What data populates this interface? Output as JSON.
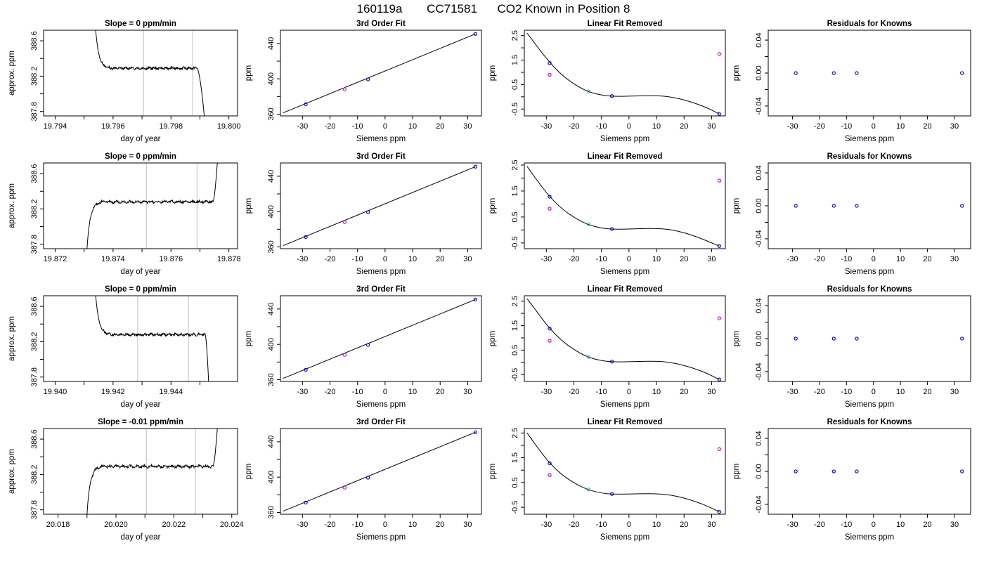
{
  "header": {
    "run": "160119a",
    "tank": "CC71581",
    "description": "CO2 Known in Position  8"
  },
  "colors": {
    "known": "#0000cd",
    "reference": "#cd00cd",
    "assigned": "#00bfff",
    "curve": "#000000",
    "window": "#bebebe"
  },
  "chart_data": [
    {
      "row": 1,
      "panel": "trace",
      "type": "line",
      "title": "Slope =  0  ppm/min",
      "xlabel": "day of year",
      "ylabel": "approx. ppm",
      "xlim": [
        19.7936,
        19.8003
      ],
      "ylim": [
        387.75,
        388.72
      ],
      "xticks": [
        "19.794",
        "19.796",
        "19.798",
        "19.800"
      ],
      "yticks": [
        "387.8",
        "388.2",
        "388.6"
      ],
      "window": [
        19.79705,
        19.79875
      ],
      "shape": {
        "start": 19.7954,
        "plateau_start": 19.7959,
        "plateau_end": 19.7989,
        "end": 19.79915,
        "edge_dir": "down",
        "level": 388.29,
        "y_start": 388.72,
        "y_end": 387.75,
        "noise": 0.012
      }
    },
    {
      "row": 1,
      "panel": "fit",
      "type": "scatter",
      "title": "3rd Order Fit",
      "xlabel": "Siemens ppm",
      "ylabel": "ppm",
      "xlim": [
        -38,
        35
      ],
      "ylim": [
        358,
        455
      ],
      "xticks": [
        "-30",
        "-20",
        "-10",
        "0",
        "10",
        "20",
        "30"
      ],
      "yticks": [
        "360",
        "400",
        "440"
      ],
      "line": [
        [
          -37,
          361.5
        ],
        [
          32.8,
          450.8
        ]
      ],
      "points": [
        {
          "x": -28.8,
          "y": 371.2,
          "kind": "known"
        },
        {
          "x": -14.7,
          "y": 388.1,
          "kind": "reference"
        },
        {
          "x": -6.2,
          "y": 399.3,
          "kind": "known"
        },
        {
          "x": 32.8,
          "y": 450.8,
          "kind": "known"
        }
      ]
    },
    {
      "row": 1,
      "panel": "linear_removed",
      "type": "scatter",
      "title": "Linear Fit Removed",
      "xlabel": "Siemens ppm",
      "ylabel": "ppm",
      "xlim": [
        -38,
        35
      ],
      "ylim": [
        -0.78,
        2.72
      ],
      "xticks": [
        "-30",
        "-20",
        "-10",
        "0",
        "10",
        "20",
        "30"
      ],
      "yticks": [
        "-0.5",
        "0.5",
        "1.5",
        "2.5"
      ],
      "curve_points": [
        [
          -37,
          2.6
        ],
        [
          -33,
          2.0
        ],
        [
          -28.8,
          1.4
        ],
        [
          -24,
          0.85
        ],
        [
          -19,
          0.45
        ],
        [
          -14.7,
          0.2
        ],
        [
          -10,
          0.07
        ],
        [
          -6.2,
          0.02
        ],
        [
          -2,
          0.02
        ],
        [
          4,
          0.04
        ],
        [
          10,
          0.05
        ],
        [
          15,
          0.0
        ],
        [
          20,
          -0.12
        ],
        [
          25,
          -0.3
        ],
        [
          29,
          -0.48
        ],
        [
          32.8,
          -0.7
        ]
      ],
      "points": [
        {
          "x": -28.8,
          "y": 1.38,
          "kind": "known"
        },
        {
          "x": -28.8,
          "y": 0.9,
          "kind": "reference"
        },
        {
          "x": -14.7,
          "y": 0.22,
          "kind": "assigned"
        },
        {
          "x": -6.2,
          "y": 0.03,
          "kind": "known"
        },
        {
          "x": 32.8,
          "y": 1.75,
          "kind": "reference"
        },
        {
          "x": 32.8,
          "y": -0.7,
          "kind": "known"
        }
      ]
    },
    {
      "row": 1,
      "panel": "residuals",
      "type": "scatter",
      "title": "Residuals for Knowns",
      "xlabel": "Siemens ppm",
      "ylabel": "ppm",
      "xlim": [
        -39,
        36
      ],
      "ylim": [
        -0.052,
        0.052
      ],
      "xticks": [
        "-30",
        "-20",
        "-10",
        "0",
        "10",
        "20",
        "30"
      ],
      "yticks": [
        "-0.04",
        "0.00",
        "0.04"
      ],
      "points": [
        {
          "x": -28.8,
          "y": 0.0,
          "kind": "known"
        },
        {
          "x": -14.7,
          "y": 0.0,
          "kind": "known"
        },
        {
          "x": -6.2,
          "y": 0.0,
          "kind": "known"
        },
        {
          "x": 32.8,
          "y": 0.0,
          "kind": "known"
        }
      ]
    },
    {
      "row": 2,
      "panel": "trace",
      "type": "line",
      "title": "Slope =  0  ppm/min",
      "xlabel": "day of year",
      "ylabel": "approx. ppm",
      "xlim": [
        19.8716,
        19.8783
      ],
      "ylim": [
        387.75,
        388.72
      ],
      "xticks": [
        "19.872",
        "19.874",
        "19.876",
        "19.878"
      ],
      "yticks": [
        "387.8",
        "388.2",
        "388.6"
      ],
      "window": [
        19.87515,
        19.8769
      ],
      "shape": {
        "start": 19.8731,
        "plateau_start": 19.8736,
        "plateau_end": 19.87745,
        "end": 19.8776,
        "edge_dir": "up",
        "level": 388.28,
        "y_start": 387.75,
        "y_end": 388.72,
        "noise": 0.012
      }
    },
    {
      "row": 2,
      "panel": "fit",
      "type": "scatter",
      "title": "3rd Order Fit",
      "xlabel": "Siemens ppm",
      "ylabel": "ppm",
      "xlim": [
        -38,
        35
      ],
      "ylim": [
        358,
        455
      ],
      "xticks": [
        "-30",
        "-20",
        "-10",
        "0",
        "10",
        "20",
        "30"
      ],
      "yticks": [
        "360",
        "400",
        "440"
      ],
      "line": [
        [
          -37,
          361.5
        ],
        [
          32.8,
          450.8
        ]
      ],
      "points": [
        {
          "x": -28.8,
          "y": 371.2,
          "kind": "known"
        },
        {
          "x": -14.7,
          "y": 388.1,
          "kind": "reference"
        },
        {
          "x": -6.2,
          "y": 399.3,
          "kind": "known"
        },
        {
          "x": 32.8,
          "y": 450.8,
          "kind": "known"
        }
      ]
    },
    {
      "row": 2,
      "panel": "linear_removed",
      "type": "scatter",
      "title": "Linear Fit Removed",
      "xlabel": "Siemens ppm",
      "ylabel": "ppm",
      "xlim": [
        -38,
        35
      ],
      "ylim": [
        -0.72,
        2.58
      ],
      "xticks": [
        "-30",
        "-20",
        "-10",
        "0",
        "10",
        "20",
        "30"
      ],
      "yticks": [
        "-0.5",
        "0.5",
        "1.5",
        "2.5"
      ],
      "curve_points": [
        [
          -37,
          2.45
        ],
        [
          -33,
          1.85
        ],
        [
          -28.8,
          1.28
        ],
        [
          -24,
          0.78
        ],
        [
          -19,
          0.42
        ],
        [
          -14.7,
          0.2
        ],
        [
          -10,
          0.07
        ],
        [
          -6.2,
          0.03
        ],
        [
          -2,
          0.03
        ],
        [
          4,
          0.05
        ],
        [
          10,
          0.06
        ],
        [
          15,
          0.02
        ],
        [
          20,
          -0.1
        ],
        [
          25,
          -0.28
        ],
        [
          29,
          -0.45
        ],
        [
          32.8,
          -0.62
        ]
      ],
      "points": [
        {
          "x": -28.8,
          "y": 1.28,
          "kind": "known"
        },
        {
          "x": -28.8,
          "y": 0.82,
          "kind": "reference"
        },
        {
          "x": -14.7,
          "y": 0.22,
          "kind": "assigned"
        },
        {
          "x": -6.2,
          "y": 0.04,
          "kind": "known"
        },
        {
          "x": 32.8,
          "y": 1.9,
          "kind": "reference"
        },
        {
          "x": 32.8,
          "y": -0.62,
          "kind": "known"
        }
      ]
    },
    {
      "row": 2,
      "panel": "residuals",
      "type": "scatter",
      "title": "Residuals for Knowns",
      "xlabel": "Siemens ppm",
      "ylabel": "ppm",
      "xlim": [
        -39,
        36
      ],
      "ylim": [
        -0.052,
        0.052
      ],
      "xticks": [
        "-30",
        "-20",
        "-10",
        "0",
        "10",
        "20",
        "30"
      ],
      "yticks": [
        "-0.04",
        "0.00",
        "0.04"
      ],
      "points": [
        {
          "x": -28.8,
          "y": 0.0,
          "kind": "known"
        },
        {
          "x": -14.7,
          "y": 0.0,
          "kind": "known"
        },
        {
          "x": -6.2,
          "y": 0.0,
          "kind": "known"
        },
        {
          "x": 32.8,
          "y": 0.0,
          "kind": "known"
        }
      ]
    },
    {
      "row": 3,
      "panel": "trace",
      "type": "line",
      "title": "Slope =  0  ppm/min",
      "xlabel": "day of year",
      "ylabel": "approx. ppm",
      "xlim": [
        19.9396,
        19.9463
      ],
      "ylim": [
        387.75,
        388.72
      ],
      "xticks": [
        "19.940",
        "19.942",
        "19.944"
      ],
      "yticks": [
        "387.8",
        "388.2",
        "388.6"
      ],
      "window": [
        19.94285,
        19.9446
      ],
      "shape": {
        "start": 19.9414,
        "plateau_start": 19.9419,
        "plateau_end": 19.94518,
        "end": 19.9453,
        "edge_dir": "down",
        "level": 388.28,
        "y_start": 388.72,
        "y_end": 387.75,
        "noise": 0.012
      }
    },
    {
      "row": 3,
      "panel": "fit",
      "type": "scatter",
      "title": "3rd Order Fit",
      "xlabel": "Siemens ppm",
      "ylabel": "ppm",
      "xlim": [
        -38,
        35
      ],
      "ylim": [
        358,
        455
      ],
      "xticks": [
        "-30",
        "-20",
        "-10",
        "0",
        "10",
        "20",
        "30"
      ],
      "yticks": [
        "360",
        "400",
        "440"
      ],
      "line": [
        [
          -37,
          361.5
        ],
        [
          32.8,
          450.8
        ]
      ],
      "points": [
        {
          "x": -28.8,
          "y": 371.2,
          "kind": "known"
        },
        {
          "x": -14.7,
          "y": 388.1,
          "kind": "reference"
        },
        {
          "x": -6.2,
          "y": 399.3,
          "kind": "known"
        },
        {
          "x": 32.8,
          "y": 450.8,
          "kind": "known"
        }
      ]
    },
    {
      "row": 3,
      "panel": "linear_removed",
      "type": "scatter",
      "title": "Linear Fit Removed",
      "xlabel": "Siemens ppm",
      "ylabel": "ppm",
      "xlim": [
        -38,
        35
      ],
      "ylim": [
        -0.78,
        2.72
      ],
      "xticks": [
        "-30",
        "-20",
        "-10",
        "0",
        "10",
        "20",
        "30"
      ],
      "yticks": [
        "-0.5",
        "0.5",
        "1.5",
        "2.5"
      ],
      "curve_points": [
        [
          -37,
          2.6
        ],
        [
          -33,
          2.0
        ],
        [
          -28.8,
          1.38
        ],
        [
          -24,
          0.84
        ],
        [
          -19,
          0.45
        ],
        [
          -14.7,
          0.2
        ],
        [
          -10,
          0.07
        ],
        [
          -6.2,
          0.02
        ],
        [
          -2,
          0.02
        ],
        [
          4,
          0.04
        ],
        [
          10,
          0.05
        ],
        [
          15,
          0.0
        ],
        [
          20,
          -0.12
        ],
        [
          25,
          -0.3
        ],
        [
          29,
          -0.48
        ],
        [
          32.8,
          -0.7
        ]
      ],
      "points": [
        {
          "x": -28.8,
          "y": 1.38,
          "kind": "known"
        },
        {
          "x": -28.8,
          "y": 0.88,
          "kind": "reference"
        },
        {
          "x": -14.7,
          "y": 0.22,
          "kind": "assigned"
        },
        {
          "x": -6.2,
          "y": 0.03,
          "kind": "known"
        },
        {
          "x": 32.8,
          "y": 1.8,
          "kind": "reference"
        },
        {
          "x": 32.8,
          "y": -0.7,
          "kind": "known"
        }
      ]
    },
    {
      "row": 3,
      "panel": "residuals",
      "type": "scatter",
      "title": "Residuals for Knowns",
      "xlabel": "Siemens ppm",
      "ylabel": "ppm",
      "xlim": [
        -39,
        36
      ],
      "ylim": [
        -0.052,
        0.052
      ],
      "xticks": [
        "-30",
        "-20",
        "-10",
        "0",
        "10",
        "20",
        "30"
      ],
      "yticks": [
        "-0.04",
        "0.00",
        "0.04"
      ],
      "points": [
        {
          "x": -28.8,
          "y": 0.0,
          "kind": "known"
        },
        {
          "x": -14.7,
          "y": 0.0,
          "kind": "known"
        },
        {
          "x": -6.2,
          "y": 0.0,
          "kind": "known"
        },
        {
          "x": 32.8,
          "y": 0.0,
          "kind": "known"
        }
      ]
    },
    {
      "row": 4,
      "panel": "trace",
      "type": "line",
      "title": "Slope =  -0.01  ppm/min",
      "xlabel": "day of year",
      "ylabel": "approx. ppm",
      "xlim": [
        20.0175,
        20.0242
      ],
      "ylim": [
        387.75,
        388.72
      ],
      "xticks": [
        "20.018",
        "20.020",
        "20.022",
        "20.024"
      ],
      "yticks": [
        "387.8",
        "388.2",
        "388.6"
      ],
      "window": [
        20.02105,
        20.02275
      ],
      "shape": {
        "start": 20.019,
        "plateau_start": 20.0195,
        "plateau_end": 20.02335,
        "end": 20.0235,
        "edge_dir": "up",
        "level": 388.29,
        "y_start": 387.75,
        "y_end": 388.72,
        "noise": 0.014
      }
    },
    {
      "row": 4,
      "panel": "fit",
      "type": "scatter",
      "title": "3rd Order Fit",
      "xlabel": "Siemens ppm",
      "ylabel": "ppm",
      "xlim": [
        -38,
        35
      ],
      "ylim": [
        358,
        455
      ],
      "xticks": [
        "-30",
        "-20",
        "-10",
        "0",
        "10",
        "20",
        "30"
      ],
      "yticks": [
        "360",
        "400",
        "440"
      ],
      "line": [
        [
          -37,
          361.5
        ],
        [
          32.8,
          450.8
        ]
      ],
      "points": [
        {
          "x": -28.8,
          "y": 371.2,
          "kind": "known"
        },
        {
          "x": -14.7,
          "y": 388.1,
          "kind": "reference"
        },
        {
          "x": -6.2,
          "y": 399.3,
          "kind": "known"
        },
        {
          "x": 32.8,
          "y": 450.8,
          "kind": "known"
        }
      ]
    },
    {
      "row": 4,
      "panel": "linear_removed",
      "type": "scatter",
      "title": "Linear Fit Removed",
      "xlabel": "Siemens ppm",
      "ylabel": "ppm",
      "xlim": [
        -38,
        35
      ],
      "ylim": [
        -0.78,
        2.68
      ],
      "xticks": [
        "-30",
        "-20",
        "-10",
        "0",
        "10",
        "20",
        "30"
      ],
      "yticks": [
        "-0.5",
        "0.5",
        "1.5",
        "2.5"
      ],
      "curve_points": [
        [
          -37,
          2.5
        ],
        [
          -33,
          1.88
        ],
        [
          -28.8,
          1.28
        ],
        [
          -24,
          0.78
        ],
        [
          -19,
          0.42
        ],
        [
          -14.7,
          0.2
        ],
        [
          -10,
          0.07
        ],
        [
          -6.2,
          0.03
        ],
        [
          -2,
          0.03
        ],
        [
          4,
          0.05
        ],
        [
          10,
          0.05
        ],
        [
          15,
          0.0
        ],
        [
          20,
          -0.12
        ],
        [
          25,
          -0.3
        ],
        [
          29,
          -0.48
        ],
        [
          32.8,
          -0.68
        ]
      ],
      "points": [
        {
          "x": -28.8,
          "y": 1.28,
          "kind": "known"
        },
        {
          "x": -28.8,
          "y": 0.8,
          "kind": "reference"
        },
        {
          "x": -14.7,
          "y": 0.22,
          "kind": "assigned"
        },
        {
          "x": -6.2,
          "y": 0.04,
          "kind": "known"
        },
        {
          "x": 32.8,
          "y": 1.85,
          "kind": "reference"
        },
        {
          "x": 32.8,
          "y": -0.68,
          "kind": "known"
        }
      ]
    },
    {
      "row": 4,
      "panel": "residuals",
      "type": "scatter",
      "title": "Residuals for Knowns",
      "xlabel": "Siemens ppm",
      "ylabel": "ppm",
      "xlim": [
        -39,
        36
      ],
      "ylim": [
        -0.052,
        0.052
      ],
      "xticks": [
        "-30",
        "-20",
        "-10",
        "0",
        "10",
        "20",
        "30"
      ],
      "yticks": [
        "-0.04",
        "0.00",
        "0.04"
      ],
      "points": [
        {
          "x": -28.8,
          "y": 0.0,
          "kind": "known"
        },
        {
          "x": -14.7,
          "y": 0.0,
          "kind": "known"
        },
        {
          "x": -6.2,
          "y": 0.0,
          "kind": "known"
        },
        {
          "x": 32.8,
          "y": 0.0,
          "kind": "known"
        }
      ]
    }
  ]
}
